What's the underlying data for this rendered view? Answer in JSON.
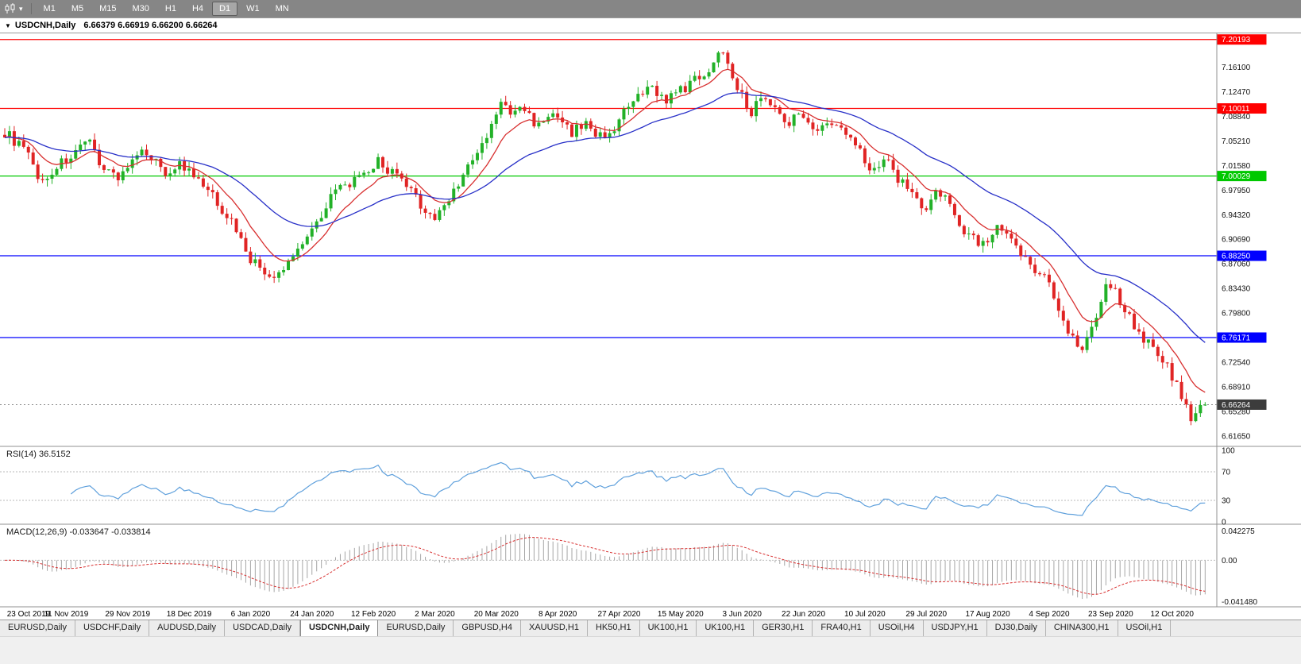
{
  "toolbar": {
    "timeframes": [
      "M1",
      "M5",
      "M15",
      "M30",
      "H1",
      "H4",
      "D1",
      "W1",
      "MN"
    ],
    "active_timeframe": "D1"
  },
  "window": {
    "collapse_glyph": "▼",
    "title": "USDCNH,Daily",
    "ohlc_text": "6.66379 6.66919 6.66200 6.66264"
  },
  "tabs": {
    "active_index": 4,
    "items": [
      {
        "label": "EURUSD,Daily"
      },
      {
        "label": "USDCHF,Daily"
      },
      {
        "label": "AUDUSD,Daily"
      },
      {
        "label": "USDCAD,Daily"
      },
      {
        "label": "USDCNH,Daily"
      },
      {
        "label": "EURUSD,Daily"
      },
      {
        "label": "GBPUSD,H4"
      },
      {
        "label": "XAUUSD,H1"
      },
      {
        "label": "HK50,H1"
      },
      {
        "label": "UK100,H1"
      },
      {
        "label": "UK100,H1"
      },
      {
        "label": "GER30,H1"
      },
      {
        "label": "FRA40,H1"
      },
      {
        "label": "USOil,H4"
      },
      {
        "label": "USDJPY,H1"
      },
      {
        "label": "DJ30,Daily"
      },
      {
        "label": "CHINA300,H1"
      },
      {
        "label": "USOil,H1"
      }
    ]
  },
  "chart_data": {
    "type": "candlestick",
    "symbol": "USDCNH",
    "timeframe": "Daily",
    "ohlc_display": {
      "open": "6.66379",
      "high": "6.66919",
      "low": "6.66200",
      "close": "6.66264"
    },
    "price_range": [
      6.601,
      7.211
    ],
    "candle_count": 255,
    "candle_up_color": "#22b128",
    "candle_down_color": "#e02424",
    "close_anchors": [
      [
        0,
        7.065
      ],
      [
        4,
        7.04
      ],
      [
        8,
        6.99
      ],
      [
        11,
        7.015
      ],
      [
        14,
        7.03
      ],
      [
        18,
        7.048
      ],
      [
        21,
        7.012
      ],
      [
        24,
        7.0
      ],
      [
        27,
        7.02
      ],
      [
        30,
        7.038
      ],
      [
        34,
        7.005
      ],
      [
        37,
        7.018
      ],
      [
        40,
        6.998
      ],
      [
        43,
        6.978
      ],
      [
        46,
        6.952
      ],
      [
        49,
        6.922
      ],
      [
        52,
        6.878
      ],
      [
        57,
        6.845
      ],
      [
        60,
        6.872
      ],
      [
        63,
        6.905
      ],
      [
        66,
        6.932
      ],
      [
        69,
        6.972
      ],
      [
        73,
        6.99
      ],
      [
        76,
        6.998
      ],
      [
        79,
        7.022
      ],
      [
        82,
        7.005
      ],
      [
        85,
        6.985
      ],
      [
        88,
        6.958
      ],
      [
        91,
        6.936
      ],
      [
        94,
        6.968
      ],
      [
        97,
        7.002
      ],
      [
        100,
        7.032
      ],
      [
        103,
        7.072
      ],
      [
        105,
        7.112
      ],
      [
        107,
        7.088
      ],
      [
        109,
        7.105
      ],
      [
        111,
        7.088
      ],
      [
        113,
        7.075
      ],
      [
        115,
        7.092
      ],
      [
        117,
        7.082
      ],
      [
        120,
        7.065
      ],
      [
        123,
        7.078
      ],
      [
        126,
        7.058
      ],
      [
        129,
        7.072
      ],
      [
        131,
        7.092
      ],
      [
        134,
        7.115
      ],
      [
        137,
        7.132
      ],
      [
        140,
        7.112
      ],
      [
        143,
        7.126
      ],
      [
        146,
        7.142
      ],
      [
        149,
        7.158
      ],
      [
        152,
        7.188
      ],
      [
        154,
        7.152
      ],
      [
        156,
        7.118
      ],
      [
        158,
        7.092
      ],
      [
        160,
        7.122
      ],
      [
        163,
        7.098
      ],
      [
        166,
        7.082
      ],
      [
        169,
        7.092
      ],
      [
        172,
        7.068
      ],
      [
        175,
        7.078
      ],
      [
        178,
        7.062
      ],
      [
        181,
        7.048
      ],
      [
        183,
        7.005
      ],
      [
        186,
        7.028
      ],
      [
        189,
        6.998
      ],
      [
        192,
        6.978
      ],
      [
        195,
        6.948
      ],
      [
        197,
        6.978
      ],
      [
        200,
        6.958
      ],
      [
        203,
        6.922
      ],
      [
        207,
        6.898
      ],
      [
        210,
        6.922
      ],
      [
        213,
        6.902
      ],
      [
        216,
        6.878
      ],
      [
        219,
        6.858
      ],
      [
        221,
        6.842
      ],
      [
        223,
        6.802
      ],
      [
        226,
        6.762
      ],
      [
        228,
        6.748
      ],
      [
        230,
        6.778
      ],
      [
        232,
        6.818
      ],
      [
        233,
        6.842
      ],
      [
        235,
        6.828
      ],
      [
        238,
        6.792
      ],
      [
        241,
        6.762
      ],
      [
        244,
        6.738
      ],
      [
        246,
        6.718
      ],
      [
        248,
        6.692
      ],
      [
        250,
        6.658
      ],
      [
        251,
        6.636
      ],
      [
        252,
        6.65
      ],
      [
        253,
        6.662
      ],
      [
        254,
        6.6626
      ]
    ],
    "x_axis_dates": [
      "23 Oct 2019",
      "11 Nov 2019",
      "29 Nov 2019",
      "18 Dec 2019",
      "6 Jan 2020",
      "24 Jan 2020",
      "12 Feb 2020",
      "2 Mar 2020",
      "20 Mar 2020",
      "8 Apr 2020",
      "27 Apr 2020",
      "15 May 2020",
      "3 Jun 2020",
      "22 Jun 2020",
      "10 Jul 2020",
      "29 Jul 2020",
      "17 Aug 2020",
      "4 Sep 2020",
      "23 Sep 2020",
      "12 Oct 2020"
    ],
    "x_tick_spacing_candles": 13,
    "y_axis_labels": [
      "7.16100",
      "7.12470",
      "7.08840",
      "7.05210",
      "7.01580",
      "6.97950",
      "6.94320",
      "6.90690",
      "6.87060",
      "6.83430",
      "6.79800",
      "6.76170",
      "6.72540",
      "6.68910",
      "6.65280",
      "6.61650"
    ],
    "levels": [
      {
        "price": 7.20193,
        "label": "7.20193",
        "color": "#ff0000"
      },
      {
        "price": 7.10011,
        "label": "7.10011",
        "color": "#ff0000"
      },
      {
        "price": 7.00029,
        "label": "7.00029",
        "color": "#00c800"
      },
      {
        "price": 6.8825,
        "label": "6.88250",
        "color": "#0000ff"
      },
      {
        "price": 6.76171,
        "label": "6.76171",
        "color": "#0000ff"
      }
    ],
    "current_price": {
      "value": 6.66264,
      "label": "6.66264",
      "badge_color": "#3c3c3c"
    },
    "moving_averages": [
      {
        "period": 10,
        "type": "ema",
        "color": "#d83030"
      },
      {
        "period": 34,
        "type": "ema",
        "color": "#2830c8"
      }
    ],
    "indicators": {
      "rsi": {
        "label": "RSI(14) 36.5152",
        "period": 14,
        "value_text": "36.5152",
        "axis_levels": [
          "100",
          "70",
          "30",
          "0"
        ],
        "dashed_levels": [
          70,
          30
        ],
        "line_color": "#5fa0dc"
      },
      "macd": {
        "label": "MACD(12,26,9) -0.033647 -0.033814",
        "fast": 12,
        "slow": 26,
        "signal": 9,
        "macd_text": "-0.033647",
        "signal_text": "-0.033814",
        "axis_labels": [
          "0.042275",
          "0.00",
          "-0.041480"
        ],
        "histogram_color": "#a6a6a6",
        "signal_color": "#d83030"
      }
    }
  }
}
